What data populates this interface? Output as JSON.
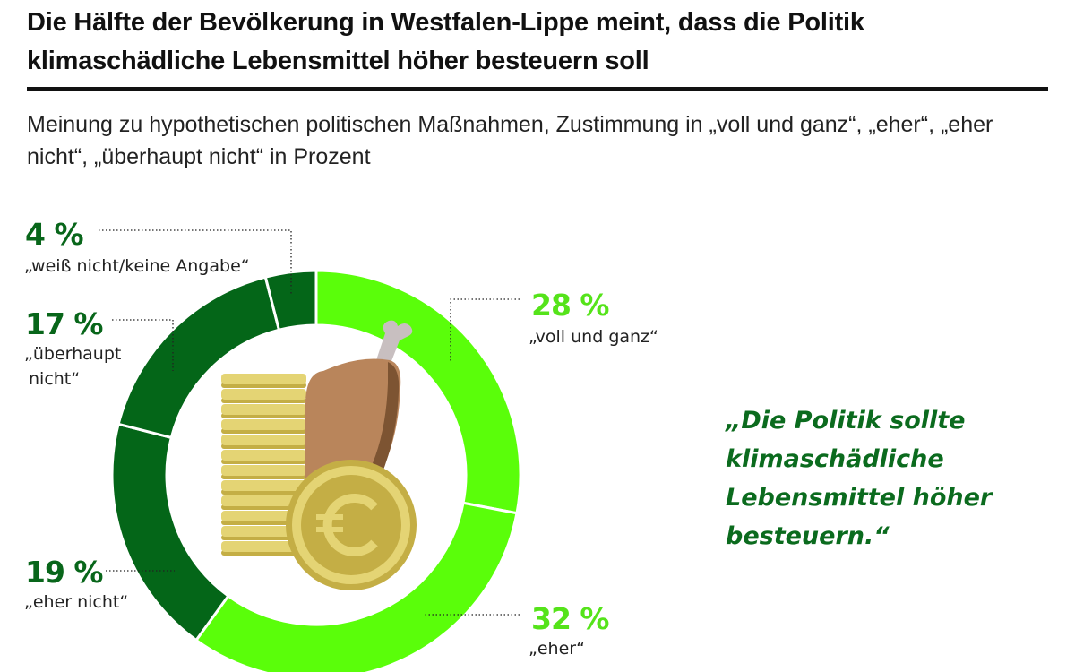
{
  "header": {
    "title": "Die Hälfte der Bevölkerung in Westfalen-Lippe meint, dass die Politik klimaschädliche Lebensmittel höher besteuern soll",
    "subtitle": "Meinung zu hypothetischen politischen Maßnahmen, Zustimmung in „voll und ganz“, „eher“, „eher nicht“, „überhaupt nicht“ in Prozent"
  },
  "quote": "„Die Politik sollte klimaschädliche Lebensmittel höher besteuern.“",
  "colors": {
    "light_green": "#5afe0a",
    "dark_green": "#046618",
    "light_label": "#55e31a",
    "dark_label": "#08661a"
  },
  "illustration": {
    "icons": [
      "coin-stack-icon",
      "chicken-leg-icon",
      "euro-coin-icon"
    ]
  },
  "chart_data": {
    "type": "pie",
    "variant": "donut",
    "title": "Die Hälfte der Bevölkerung in Westfalen-Lippe meint, dass die Politik klimaschädliche Lebensmittel höher besteuern soll",
    "subtitle": "Meinung zu hypothetischen politischen Maßnahmen, Zustimmung in „voll und ganz“, „eher“, „eher nicht“, „überhaupt nicht“ in Prozent",
    "unit": "%",
    "start": "top",
    "direction": "clockwise",
    "slices": [
      {
        "key": "voll",
        "label": "„voll und ganz“",
        "value": 28,
        "value_label": "28 %",
        "color": "#5afe0a",
        "tone": "light"
      },
      {
        "key": "eher",
        "label": "„eher“",
        "value": 32,
        "value_label": "32 %",
        "color": "#5afe0a",
        "tone": "light"
      },
      {
        "key": "eher_nicht",
        "label": "„eher nicht“",
        "value": 19,
        "value_label": "19 %",
        "color": "#046618",
        "tone": "dark"
      },
      {
        "key": "ueberhaupt_nicht",
        "label": "„überhaupt nicht“",
        "label_lines": [
          "„überhaupt",
          "nicht“"
        ],
        "value": 17,
        "value_label": "17 %",
        "color": "#046618",
        "tone": "dark"
      },
      {
        "key": "weiss_nicht",
        "label": "„weiß nicht/keine Angabe“",
        "value": 4,
        "value_label": "4 %",
        "color": "#046618",
        "tone": "dark"
      }
    ]
  }
}
